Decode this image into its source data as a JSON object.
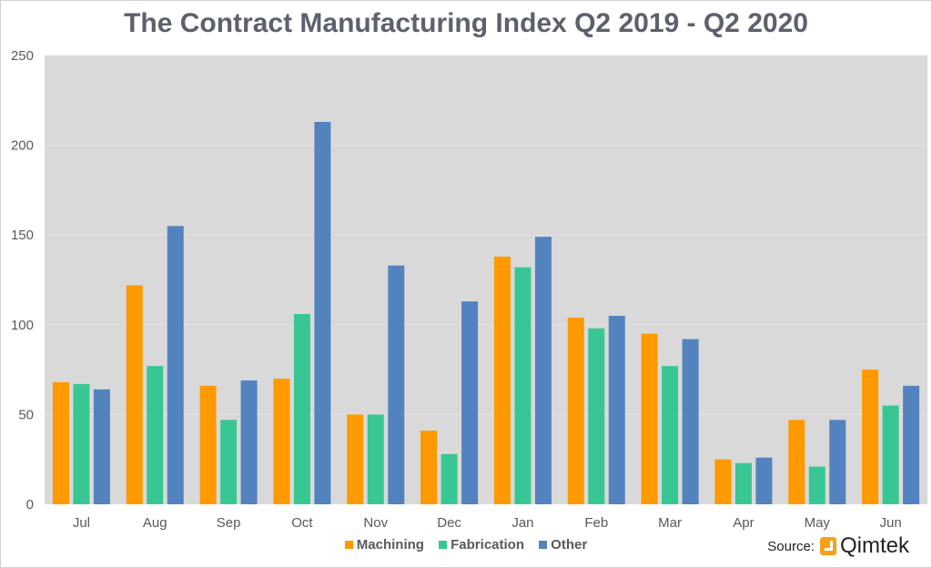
{
  "chart_data": {
    "type": "bar",
    "title": "The Contract Manufacturing Index Q2 2019 - Q2 2020",
    "categories": [
      "Jul",
      "Aug",
      "Sep",
      "Oct",
      "Nov",
      "Dec",
      "Jan",
      "Feb",
      "Mar",
      "Apr",
      "May",
      "Jun"
    ],
    "series": [
      {
        "name": "Machining",
        "color": "#ff9900",
        "values": [
          68,
          122,
          66,
          70,
          50,
          41,
          138,
          104,
          95,
          25,
          47,
          75
        ]
      },
      {
        "name": "Fabrication",
        "color": "#38c793",
        "values": [
          67,
          77,
          47,
          106,
          50,
          28,
          132,
          98,
          77,
          23,
          21,
          55
        ]
      },
      {
        "name": "Other",
        "color": "#5383be",
        "values": [
          64,
          155,
          69,
          213,
          133,
          113,
          149,
          105,
          92,
          26,
          47,
          66
        ]
      }
    ],
    "ylim": [
      0,
      250
    ],
    "yticks": [
      0,
      50,
      100,
      150,
      200,
      250
    ],
    "grid": true,
    "legend": "bottom",
    "plot_background": "#d9d9d9"
  },
  "source": {
    "label": "Source:",
    "brand": "Qimtek"
  }
}
